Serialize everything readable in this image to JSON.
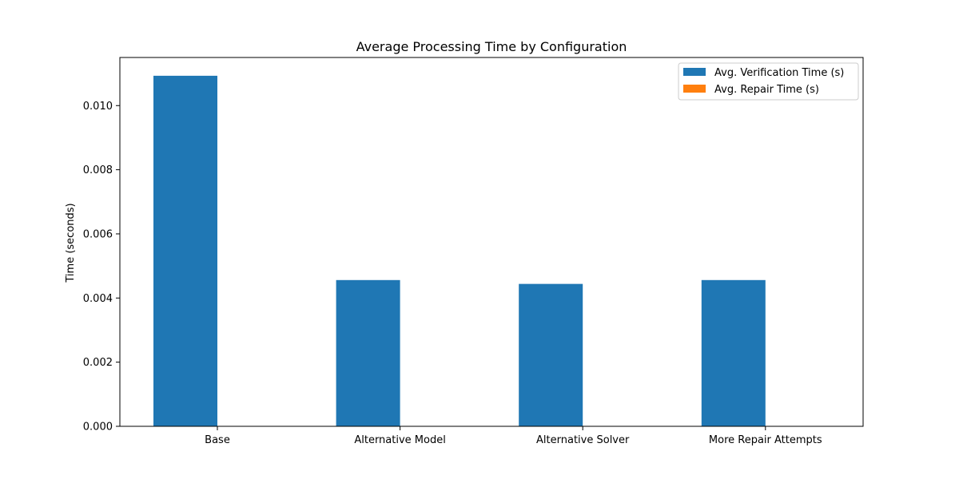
{
  "chart_data": {
    "type": "bar",
    "title": "Average Processing Time by Configuration",
    "xlabel": "",
    "ylabel": "Time (seconds)",
    "categories": [
      "Base",
      "Alternative Model",
      "Alternative Solver",
      "More Repair Attempts"
    ],
    "series": [
      {
        "name": "Avg. Verification Time (s)",
        "color": "#1f77b4",
        "values": [
          0.01093,
          0.00456,
          0.00444,
          0.00456
        ]
      },
      {
        "name": "Avg. Repair Time (s)",
        "color": "#ff7f0e",
        "values": [
          0.0,
          0.0,
          0.0,
          0.0
        ]
      }
    ],
    "ylim": [
      0,
      0.0115
    ],
    "yticks": [
      0.0,
      0.002,
      0.004,
      0.006,
      0.008,
      0.01
    ],
    "ytick_labels": [
      "0.000",
      "0.002",
      "0.004",
      "0.006",
      "0.008",
      "0.010"
    ],
    "grid": false,
    "legend_position": "top-right"
  }
}
